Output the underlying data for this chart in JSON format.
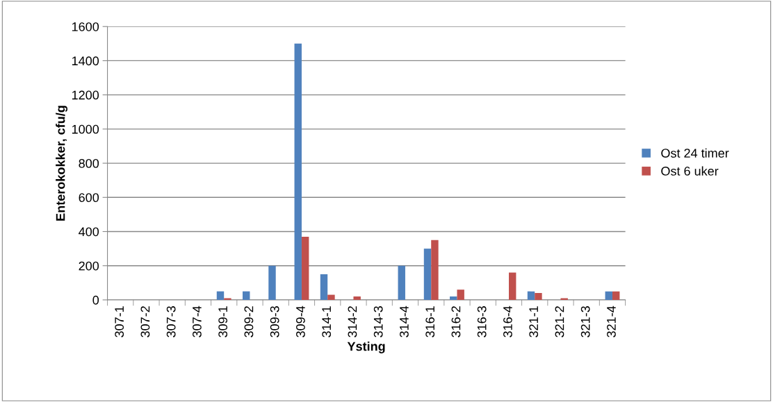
{
  "chart_data": {
    "type": "bar",
    "xlabel": "Ysting",
    "ylabel": "Enterokokker, cfu/g",
    "categories": [
      "307-1",
      "307-2",
      "307-3",
      "307-4",
      "309-1",
      "309-2",
      "309-3",
      "309-4",
      "314-1",
      "314-2",
      "314-3",
      "314-4",
      "316-1",
      "316-2",
      "316-3",
      "316-4",
      "321-1",
      "321-2",
      "321-3",
      "321-4"
    ],
    "series": [
      {
        "name": "Ost 24 timer",
        "color": "#4f81bd",
        "values": [
          null,
          null,
          null,
          null,
          50,
          50,
          200,
          1500,
          150,
          null,
          null,
          200,
          300,
          20,
          null,
          null,
          50,
          null,
          null,
          50
        ]
      },
      {
        "name": "Ost 6 uker",
        "color": "#c0504d",
        "values": [
          null,
          null,
          null,
          null,
          10,
          null,
          null,
          370,
          30,
          20,
          null,
          null,
          350,
          60,
          null,
          160,
          40,
          10,
          null,
          50
        ]
      }
    ],
    "ylim": [
      0,
      1600
    ],
    "yticks": [
      0,
      200,
      400,
      600,
      800,
      1000,
      1200,
      1400,
      1600
    ],
    "grid": "y",
    "legend": "right"
  }
}
